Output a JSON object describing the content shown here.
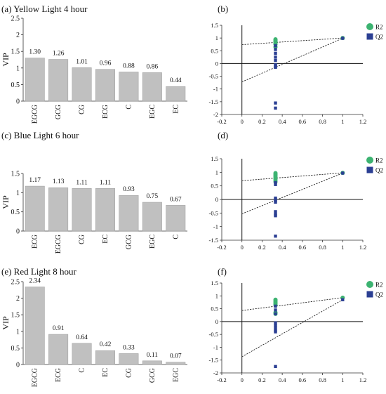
{
  "chart_data": [
    {
      "panel": "(a)",
      "type": "bar",
      "title": "Yellow Light 4 hour",
      "ylabel": "VIP",
      "ylim": [
        0,
        2.5
      ],
      "yticks": [
        "0",
        "0.5",
        "1",
        "1.5",
        "2",
        "2.5"
      ],
      "categories": [
        "EGCG",
        "GCG",
        "CG",
        "ECG",
        "C",
        "EGC",
        "EC"
      ],
      "values": [
        1.3,
        1.26,
        1.01,
        0.96,
        0.88,
        0.86,
        0.44
      ],
      "value_labels": [
        "1.30",
        "1.26",
        "1.01",
        "0.96",
        "0.88",
        "0.86",
        "0.44"
      ],
      "bar_color": "#c0c0c0"
    },
    {
      "panel": "(b)",
      "type": "scatter",
      "xlim": [
        -0.2,
        1.2
      ],
      "ylim": [
        -2,
        1.5
      ],
      "xticks": [
        "-0.2",
        "0",
        "0.2",
        "0.4",
        "0.6",
        "0.8",
        "1",
        "1.2"
      ],
      "yticks": [
        "-2",
        "-1.5",
        "-1",
        "-0.5",
        "0",
        "0.5",
        "1",
        "1.5"
      ],
      "legend": "top-right",
      "series": [
        {
          "name": "R2",
          "marker": "circle",
          "color": "#3cb371",
          "x": [
            0.333,
            0.333,
            0.333,
            0.333,
            0.333,
            0.333,
            0.333,
            1.0
          ],
          "y": [
            0.95,
            0.92,
            0.88,
            0.85,
            0.8,
            0.75,
            0.65,
            1.0
          ],
          "line": [
            [
              0,
              0.74
            ],
            [
              1,
              1.0
            ]
          ]
        },
        {
          "name": "Q2",
          "marker": "square",
          "color": "#2b3f93",
          "x": [
            0.333,
            0.333,
            0.333,
            0.333,
            0.333,
            0.333,
            0.333,
            0.333,
            0.333,
            0.333,
            0.333,
            1.0
          ],
          "y": [
            0.7,
            0.55,
            0.4,
            0.25,
            0.12,
            -0.05,
            -0.08,
            -0.12,
            -0.15,
            -1.55,
            -1.75,
            0.99
          ],
          "line": [
            [
              0,
              -0.72
            ],
            [
              1,
              0.99
            ]
          ]
        }
      ]
    },
    {
      "panel": "(c)",
      "type": "bar",
      "title": "Blue Light 6 hour",
      "ylabel": "VIP",
      "ylim": [
        0,
        1.5
      ],
      "yticks": [
        "0",
        "0.5",
        "1",
        "1.5"
      ],
      "categories": [
        "ECG",
        "EGCG",
        "CG",
        "EC",
        "GCG",
        "EGC",
        "C"
      ],
      "values": [
        1.17,
        1.13,
        1.11,
        1.11,
        0.93,
        0.75,
        0.67
      ],
      "value_labels": [
        "1.17",
        "1.13",
        "1.11",
        "1.11",
        "0.93",
        "0.75",
        "0.67"
      ],
      "bar_color": "#c0c0c0"
    },
    {
      "panel": "(d)",
      "type": "scatter",
      "xlim": [
        -0.2,
        1.2
      ],
      "ylim": [
        -1.5,
        1.5
      ],
      "xticks": [
        "-0.2",
        "0",
        "0.2",
        "0.4",
        "0.6",
        "0.8",
        "1",
        "1.2"
      ],
      "yticks": [
        "-1.5",
        "-1",
        "-0.5",
        "0",
        "0.5",
        "1",
        "1.5"
      ],
      "legend": "top-right",
      "series": [
        {
          "name": "R2",
          "marker": "circle",
          "color": "#3cb371",
          "x": [
            0.333,
            0.333,
            0.333,
            0.333,
            0.333,
            0.333,
            0.333,
            1.0
          ],
          "y": [
            0.97,
            0.92,
            0.88,
            0.83,
            0.78,
            0.72,
            0.65,
            0.98
          ],
          "line": [
            [
              0,
              0.69
            ],
            [
              1,
              0.98
            ]
          ]
        },
        {
          "name": "Q2",
          "marker": "square",
          "color": "#2b3f93",
          "x": [
            0.333,
            0.333,
            0.333,
            0.333,
            0.333,
            0.333,
            0.333,
            0.333,
            0.333,
            0.333,
            1.0
          ],
          "y": [
            0.62,
            0.55,
            0.05,
            0.0,
            -0.05,
            -0.1,
            -0.45,
            -0.55,
            -0.6,
            -1.35,
            0.97
          ],
          "line": [
            [
              0,
              -0.53
            ],
            [
              1,
              0.97
            ]
          ]
        }
      ]
    },
    {
      "panel": "(e)",
      "type": "bar",
      "title": "Red Light 8 hour",
      "ylabel": "VIP",
      "ylim": [
        0,
        2.5
      ],
      "yticks": [
        "0",
        "0.5",
        "1",
        "1.5",
        "2",
        "2.5"
      ],
      "categories": [
        "EGCG",
        "ECG",
        "C",
        "EC",
        "CG",
        "GCG",
        "EGC"
      ],
      "values": [
        2.34,
        0.91,
        0.64,
        0.42,
        0.33,
        0.11,
        0.07
      ],
      "value_labels": [
        "2.34",
        "0.91",
        "0.64",
        "0.42",
        "0.33",
        "0.11",
        "0.07"
      ],
      "bar_color": "#c0c0c0"
    },
    {
      "panel": "(f)",
      "type": "scatter",
      "xlim": [
        -0.2,
        1.2
      ],
      "ylim": [
        -2,
        1.5
      ],
      "xticks": [
        "-0.2",
        "0",
        "0.2",
        "0.4",
        "0.6",
        "0.8",
        "1",
        "1.2"
      ],
      "yticks": [
        "-2",
        "-1.5",
        "-1",
        "-0.5",
        "0",
        "0.5",
        "1",
        "1.5"
      ],
      "legend": "top-right",
      "series": [
        {
          "name": "R2",
          "marker": "circle",
          "color": "#3cb371",
          "x": [
            0.333,
            0.333,
            0.333,
            0.333,
            0.333,
            0.333,
            0.333,
            1.0
          ],
          "y": [
            0.85,
            0.8,
            0.75,
            0.7,
            0.65,
            0.35,
            0.3,
            0.93
          ],
          "line": [
            [
              0,
              0.43
            ],
            [
              1,
              0.93
            ]
          ]
        },
        {
          "name": "Q2",
          "marker": "square",
          "color": "#2b3f93",
          "x": [
            0.333,
            0.333,
            0.333,
            0.333,
            0.333,
            0.333,
            0.333,
            0.333,
            0.333,
            1.0
          ],
          "y": [
            0.6,
            0.45,
            0.3,
            -0.05,
            -0.15,
            -0.25,
            -0.35,
            -0.4,
            -1.75,
            0.85
          ],
          "line": [
            [
              0,
              -1.37
            ],
            [
              1,
              0.85
            ]
          ]
        }
      ]
    }
  ]
}
